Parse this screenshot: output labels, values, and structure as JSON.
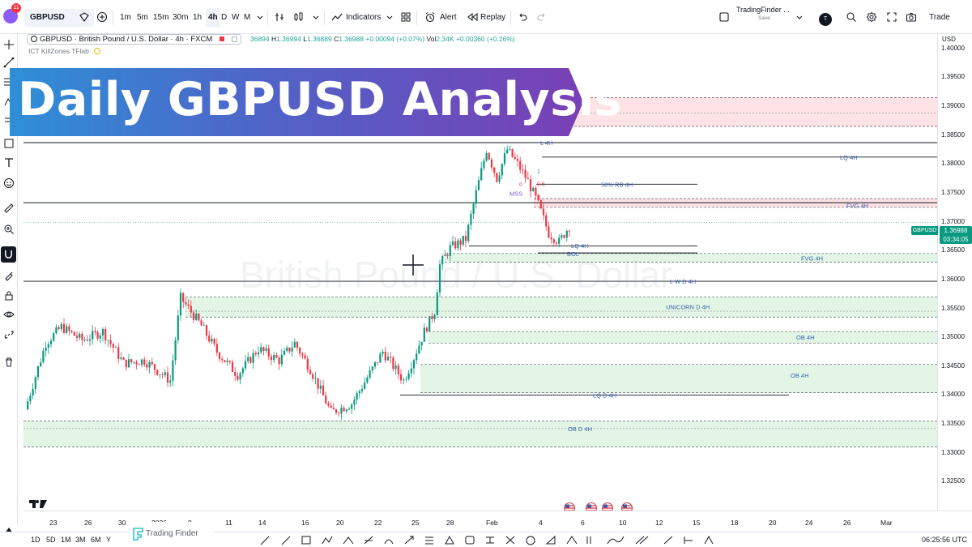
{
  "topbar": {
    "notification_count": "11",
    "symbol": "GBPUSD",
    "timeframes": [
      "1m",
      "5m",
      "15m",
      "30m",
      "1h",
      "4h",
      "D",
      "W",
      "M"
    ],
    "active_timeframe": "4h",
    "indicators_label": "Indicators",
    "alert_label": "Alert",
    "replay_label": "Replay",
    "layout_name": "TradingFinder ...",
    "layout_status": "Save",
    "user_initial": "T",
    "trade_label": "Trade"
  },
  "legend": {
    "title": "GBPUSD · British Pound / U.S. Dollar · 4h · FXCM",
    "ohlc_partial_open": "36894",
    "high_key": "H",
    "high": "1.36994",
    "low_key": "L",
    "low": "1.36889",
    "close_key": "C",
    "close": "1.36988",
    "change": "+0.00094 (+0.07%)",
    "vol_key": "Vol",
    "vol": "2.34K",
    "vol_change": "+0.00360 (+0.26%)",
    "indicator": "ICT KillZones TFlab"
  },
  "banner": {
    "text": "Daily GBPUSD Analysis"
  },
  "watermark": "British Pound / U.S. Dollar",
  "price_axis": {
    "currency": "USD",
    "ticks": [
      "1.40000",
      "1.39500",
      "1.39000",
      "1.38500",
      "1.38000",
      "1.37500",
      "1.37000",
      "1.36500",
      "1.36000",
      "1.35500",
      "1.35000",
      "1.34500",
      "1.34000",
      "1.33500",
      "1.33000",
      "1.32500"
    ],
    "price_tag_symbol": "GBPUSD",
    "price_tag_value": "1.36988",
    "countdown": "03:34:05"
  },
  "time_axis": {
    "labels": [
      "23",
      "26",
      "30",
      "2026",
      "8",
      "11",
      "14",
      "16",
      "20",
      "22",
      "25",
      "28",
      "Feb",
      "4",
      "6",
      "10",
      "12",
      "15",
      "18",
      "20",
      "24",
      "26",
      "Mar"
    ]
  },
  "annotations": {
    "l_4h": "L 4H",
    "lq_4h_top": "LQ 4H",
    "mark_1": "1",
    "mark_o": "o",
    "mark_0_5": "0.5",
    "rb_50": "50% RB 4H",
    "mss": "MSS",
    "mark_0": "0",
    "fvg_4h_top": "FVG 4H",
    "lq_4h_mid": "LQ 4H",
    "bol": "BOL",
    "fvg_4h_mid": "FVG 4H",
    "lwd_4h": "L W D 4H",
    "unicorn": "UNICORN D 4H",
    "ob_4h_a": "OB 4H",
    "ob_4h_b": "OB 4H",
    "lqd_4h": "LQ D 4H",
    "ob_d_4h": "OB D 4H"
  },
  "bottombar": {
    "ranges": [
      "1D",
      "5D",
      "1M",
      "3M",
      "6M",
      "Y"
    ],
    "time": "06:25:56 UTC",
    "brand": "Trading Finder"
  },
  "chart_data": {
    "type": "candlestick",
    "symbol": "GBPUSD",
    "ylim": [
      1.32,
      1.4025
    ],
    "zones": [
      {
        "kind": "supply",
        "y": [
          1.3865,
          1.3915
        ]
      },
      {
        "kind": "fvg",
        "y": [
          1.3725,
          1.374
        ]
      },
      {
        "kind": "fvg",
        "y": [
          1.363,
          1.3645
        ]
      },
      {
        "kind": "demand",
        "y": [
          1.3535,
          1.357
        ]
      },
      {
        "kind": "demand",
        "y": [
          1.349,
          1.351
        ]
      },
      {
        "kind": "demand",
        "y": [
          1.3404,
          1.3453
        ]
      },
      {
        "kind": "demand",
        "y": [
          1.331,
          1.3355
        ]
      }
    ],
    "last_price": 1.36988
  },
  "colors": {
    "up": "#089981",
    "down": "#f23645",
    "accent": "#2962ff",
    "annotation": "#3a5fb0",
    "supply_fill": "#fde3e6",
    "demand_fill": "#e3f6e5"
  }
}
